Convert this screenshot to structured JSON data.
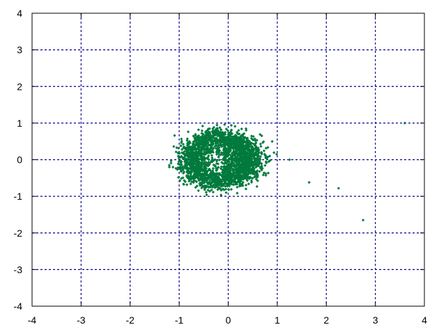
{
  "chart_data": {
    "type": "scatter",
    "title": "",
    "xlabel": "",
    "ylabel": "",
    "xlim": [
      -4,
      4
    ],
    "ylim": [
      -4,
      4
    ],
    "x_ticks": [
      "-4",
      "-3",
      "-2",
      "-1",
      "0",
      "1",
      "2",
      "3",
      "4"
    ],
    "y_ticks": [
      "-4",
      "-3",
      "-2",
      "-1",
      "0",
      "1",
      "2",
      "3",
      "4"
    ],
    "x_tick_values": [
      -4,
      -3,
      -2,
      -1,
      0,
      1,
      2,
      3,
      4
    ],
    "y_tick_values": [
      -4,
      -3,
      -2,
      -1,
      0,
      1,
      2,
      3,
      4
    ],
    "grid": true,
    "legend": "none",
    "series": [
      {
        "color": "#007a3d",
        "marker": "diamond",
        "distribution": "dense ring-shaped cloud centered near (-0.1, 0), outer radius ~1.0 in x and ~0.95 in y, sparse hole near (0.1, 0.1)",
        "approx_point_count": 2500,
        "ring_center": [
          -0.1,
          0.0
        ],
        "ring_radius": 0.62,
        "outlier_points": [
          {
            "x": 1.25,
            "y": 0.0
          },
          {
            "x": 1.65,
            "y": -0.62
          },
          {
            "x": 2.25,
            "y": -0.78
          },
          {
            "x": 2.75,
            "y": -1.65
          },
          {
            "x": 3.6,
            "y": 1.0
          }
        ]
      }
    ],
    "colors": {
      "grid": "#00008b",
      "axis": "#000000",
      "points": "#007a3d"
    }
  }
}
